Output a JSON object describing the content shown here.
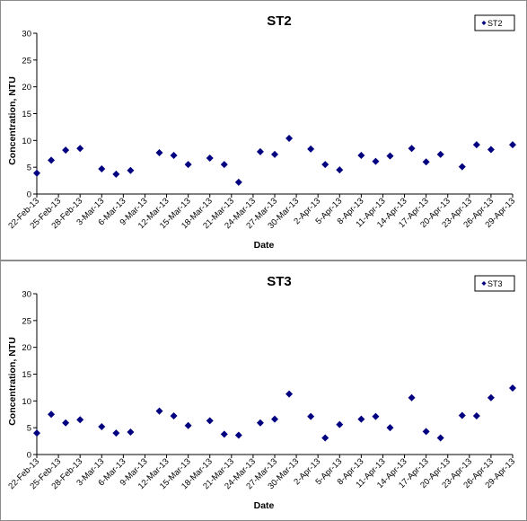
{
  "chart_data": [
    {
      "type": "scatter",
      "title": "ST2",
      "xlabel": "Date",
      "ylabel": "Concentration, NTU",
      "ylim": [
        0,
        30
      ],
      "yticks": [
        0,
        5,
        10,
        15,
        20,
        25,
        30
      ],
      "x_ticks": [
        "22-Feb-13",
        "25-Feb-13",
        "28-Feb-13",
        "3-Mar-13",
        "6-Mar-13",
        "9-Mar-13",
        "12-Mar-13",
        "15-Mar-13",
        "18-Mar-13",
        "21-Mar-13",
        "24-Mar-13",
        "27-Mar-13",
        "30-Mar-13",
        "2-Apr-13",
        "5-Apr-13",
        "8-Apr-13",
        "11-Apr-13",
        "14-Apr-13",
        "17-Apr-13",
        "20-Apr-13",
        "23-Apr-13",
        "26-Apr-13",
        "29-Apr-13"
      ],
      "legend": "top-right",
      "grid": false,
      "series": [
        {
          "name": "ST2",
          "color": "#000080",
          "marker": "diamond",
          "points": [
            {
              "x": "22-Feb-13",
              "y": 3.9
            },
            {
              "x": "24-Feb-13",
              "y": 6.3
            },
            {
              "x": "26-Feb-13",
              "y": 8.2
            },
            {
              "x": "28-Feb-13",
              "y": 8.5
            },
            {
              "x": "3-Mar-13",
              "y": 4.7
            },
            {
              "x": "5-Mar-13",
              "y": 3.7
            },
            {
              "x": "7-Mar-13",
              "y": 4.4
            },
            {
              "x": "11-Mar-13",
              "y": 7.7
            },
            {
              "x": "13-Mar-13",
              "y": 7.2
            },
            {
              "x": "15-Mar-13",
              "y": 5.5
            },
            {
              "x": "18-Mar-13",
              "y": 6.7
            },
            {
              "x": "20-Mar-13",
              "y": 5.5
            },
            {
              "x": "22-Mar-13",
              "y": 2.2
            },
            {
              "x": "25-Mar-13",
              "y": 7.9
            },
            {
              "x": "27-Mar-13",
              "y": 7.4
            },
            {
              "x": "29-Mar-13",
              "y": 10.4
            },
            {
              "x": "1-Apr-13",
              "y": 8.4
            },
            {
              "x": "3-Apr-13",
              "y": 5.5
            },
            {
              "x": "5-Apr-13",
              "y": 4.5
            },
            {
              "x": "8-Apr-13",
              "y": 7.2
            },
            {
              "x": "10-Apr-13",
              "y": 6.1
            },
            {
              "x": "12-Apr-13",
              "y": 7.1
            },
            {
              "x": "15-Apr-13",
              "y": 8.5
            },
            {
              "x": "17-Apr-13",
              "y": 6.0
            },
            {
              "x": "19-Apr-13",
              "y": 7.4
            },
            {
              "x": "22-Apr-13",
              "y": 5.1
            },
            {
              "x": "24-Apr-13",
              "y": 9.2
            },
            {
              "x": "26-Apr-13",
              "y": 8.3
            },
            {
              "x": "29-Apr-13",
              "y": 9.2
            }
          ]
        }
      ]
    },
    {
      "type": "scatter",
      "title": "ST3",
      "xlabel": "Date",
      "ylabel": "Concentration, NTU",
      "ylim": [
        0,
        30
      ],
      "yticks": [
        0,
        5,
        10,
        15,
        20,
        25,
        30
      ],
      "x_ticks": [
        "22-Feb-13",
        "25-Feb-13",
        "28-Feb-13",
        "3-Mar-13",
        "6-Mar-13",
        "9-Mar-13",
        "12-Mar-13",
        "15-Mar-13",
        "18-Mar-13",
        "21-Mar-13",
        "24-Mar-13",
        "27-Mar-13",
        "30-Mar-13",
        "2-Apr-13",
        "5-Apr-13",
        "8-Apr-13",
        "11-Apr-13",
        "14-Apr-13",
        "17-Apr-13",
        "20-Apr-13",
        "23-Apr-13",
        "26-Apr-13",
        "29-Apr-13"
      ],
      "legend": "top-right",
      "grid": false,
      "series": [
        {
          "name": "ST3",
          "color": "#000080",
          "marker": "diamond",
          "points": [
            {
              "x": "22-Feb-13",
              "y": 4.0
            },
            {
              "x": "24-Feb-13",
              "y": 7.5
            },
            {
              "x": "26-Feb-13",
              "y": 5.9
            },
            {
              "x": "28-Feb-13",
              "y": 6.5
            },
            {
              "x": "3-Mar-13",
              "y": 5.2
            },
            {
              "x": "5-Mar-13",
              "y": 4.0
            },
            {
              "x": "7-Mar-13",
              "y": 4.2
            },
            {
              "x": "11-Mar-13",
              "y": 8.1
            },
            {
              "x": "13-Mar-13",
              "y": 7.2
            },
            {
              "x": "15-Mar-13",
              "y": 5.4
            },
            {
              "x": "18-Mar-13",
              "y": 6.3
            },
            {
              "x": "20-Mar-13",
              "y": 3.8
            },
            {
              "x": "22-Mar-13",
              "y": 3.6
            },
            {
              "x": "25-Mar-13",
              "y": 5.9
            },
            {
              "x": "27-Mar-13",
              "y": 6.6
            },
            {
              "x": "29-Mar-13",
              "y": 11.3
            },
            {
              "x": "1-Apr-13",
              "y": 7.1
            },
            {
              "x": "3-Apr-13",
              "y": 3.1
            },
            {
              "x": "5-Apr-13",
              "y": 5.6
            },
            {
              "x": "8-Apr-13",
              "y": 6.6
            },
            {
              "x": "10-Apr-13",
              "y": 7.1
            },
            {
              "x": "12-Apr-13",
              "y": 5.0
            },
            {
              "x": "15-Apr-13",
              "y": 10.6
            },
            {
              "x": "17-Apr-13",
              "y": 4.3
            },
            {
              "x": "19-Apr-13",
              "y": 3.1
            },
            {
              "x": "22-Apr-13",
              "y": 7.3
            },
            {
              "x": "24-Apr-13",
              "y": 7.2
            },
            {
              "x": "26-Apr-13",
              "y": 10.6
            },
            {
              "x": "29-Apr-13",
              "y": 12.4
            }
          ]
        }
      ]
    }
  ]
}
